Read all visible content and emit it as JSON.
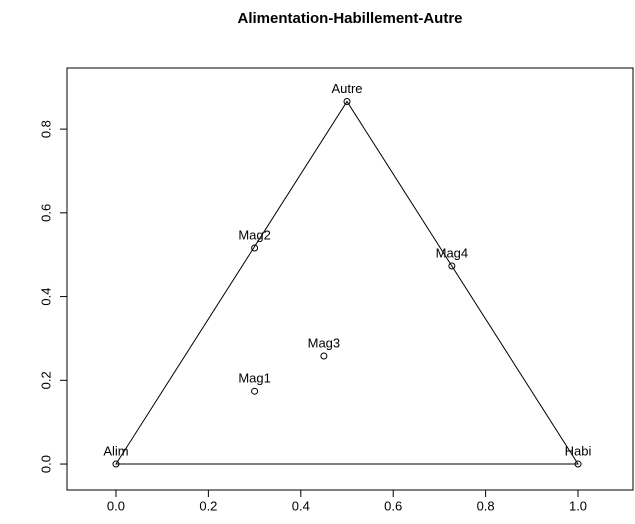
{
  "chart_data": {
    "type": "scatter",
    "title": "Alimentation-Habillement-Autre",
    "vertices": {
      "labels": [
        "Alim",
        "Habi",
        "Autre"
      ],
      "x": [
        0,
        1,
        0.5
      ],
      "y": [
        0,
        0,
        0.866
      ]
    },
    "points": {
      "labels": [
        "Mag1",
        "Mag2",
        "Mag3",
        "Mag4"
      ],
      "x": [
        0.3,
        0.3,
        0.45,
        0.727
      ],
      "y": [
        0.174,
        0.516,
        0.258,
        0.473
      ]
    },
    "color": "#000000",
    "xlim": [
      -0.106,
      1.119
    ],
    "xticks": [
      {
        "value": 0,
        "label": "0.0"
      },
      0.2,
      0.4,
      0.6,
      0.8,
      {
        "value": 1,
        "label": "1.0"
      }
    ],
    "ylim": [
      -0.062,
      0.946
    ],
    "yticks": [
      {
        "value": 0,
        "label": "0.0"
      },
      0.2,
      0.4,
      0.6,
      0.8
    ]
  }
}
